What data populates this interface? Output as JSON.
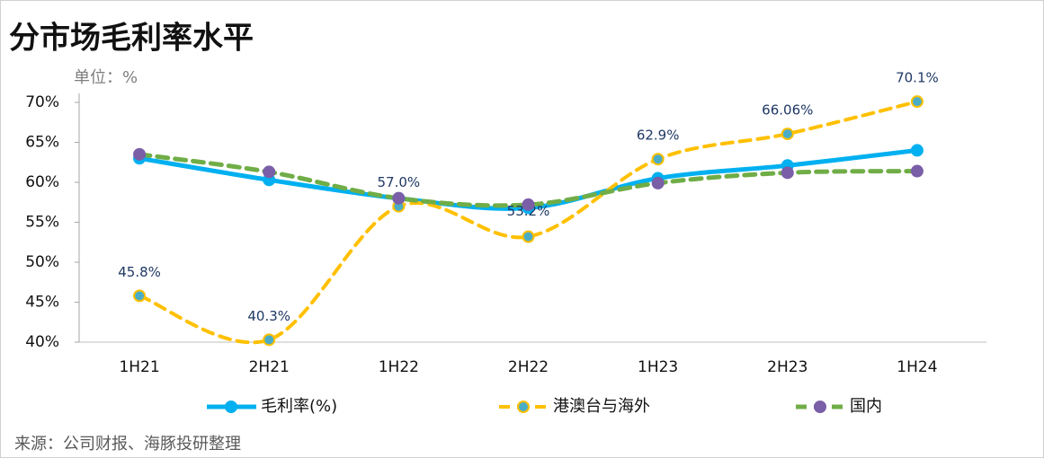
{
  "chart_data": {
    "type": "line",
    "title": "分市场毛利率水平",
    "unit": "单位：%",
    "source": "来源：公司财报、海豚投研整理",
    "categories": [
      "1H21",
      "2H21",
      "1H22",
      "2H22",
      "1H23",
      "2H23",
      "1H24"
    ],
    "series": [
      {
        "name": "毛利率(%)",
        "color": "#00b0f0",
        "values": [
          63.0,
          60.3,
          58.0,
          56.8,
          60.5,
          62.1,
          64.0
        ]
      },
      {
        "name": "港澳台与海外",
        "color": "#ffc000",
        "values": [
          45.8,
          40.3,
          57.0,
          53.2,
          62.9,
          66.06,
          70.1
        ],
        "value_labels": [
          "45.8%",
          "40.3%",
          "57.0%",
          "53.2%",
          "62.9%",
          "66.06%",
          "70.1%"
        ]
      },
      {
        "name": "国内",
        "color": "#70ad47",
        "values": [
          63.5,
          61.3,
          58.0,
          57.2,
          59.9,
          61.2,
          61.4
        ]
      }
    ],
    "ylim": [
      40,
      70
    ],
    "yticks": [
      {
        "value": 40,
        "label": "40%"
      },
      {
        "value": 45,
        "label": "45%"
      },
      {
        "value": 50,
        "label": "50%"
      },
      {
        "value": 55,
        "label": "55%"
      },
      {
        "value": 60,
        "label": "60%"
      },
      {
        "value": 65,
        "label": "65%"
      },
      {
        "value": 70,
        "label": "70%"
      }
    ]
  }
}
